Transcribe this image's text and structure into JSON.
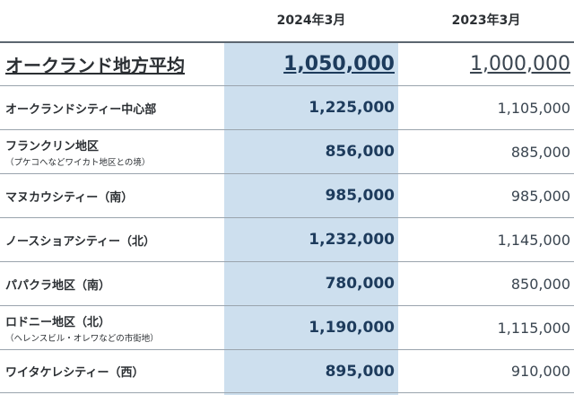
{
  "header": {
    "col_2024": "2024年3月",
    "col_2023": "2023年3月"
  },
  "rows": [
    {
      "name": "オークランド地方平均",
      "sub": "",
      "v2024": "1,050,000",
      "v2023": "1,000,000"
    },
    {
      "name": "オークランドシティー中心部",
      "sub": "",
      "v2024": "1,225,000",
      "v2023": "1,105,000"
    },
    {
      "name": "フランクリン地区",
      "sub": "（プケコへなどワイカト地区との境）",
      "v2024": "856,000",
      "v2023": "885,000"
    },
    {
      "name": "マヌカウシティー（南）",
      "sub": "",
      "v2024": "985,000",
      "v2023": "985,000"
    },
    {
      "name": "ノースショアシティー（北）",
      "sub": "",
      "v2024": "1,232,000",
      "v2023": "1,145,000"
    },
    {
      "name": "パパクラ地区（南）",
      "sub": "",
      "v2024": "780,000",
      "v2023": "850,000"
    },
    {
      "name": "ロドニー地区（北）",
      "sub": "（ヘレンスビル・オレワなどの市街地）",
      "v2024": "1,190,000",
      "v2023": "1,115,000"
    },
    {
      "name": "ワイタケレシティー（西）",
      "sub": "",
      "v2024": "895,000",
      "v2023": "910,000"
    }
  ],
  "colors": {
    "highlight_column": "#cddfee",
    "value_2024": "#1d3b5c"
  }
}
